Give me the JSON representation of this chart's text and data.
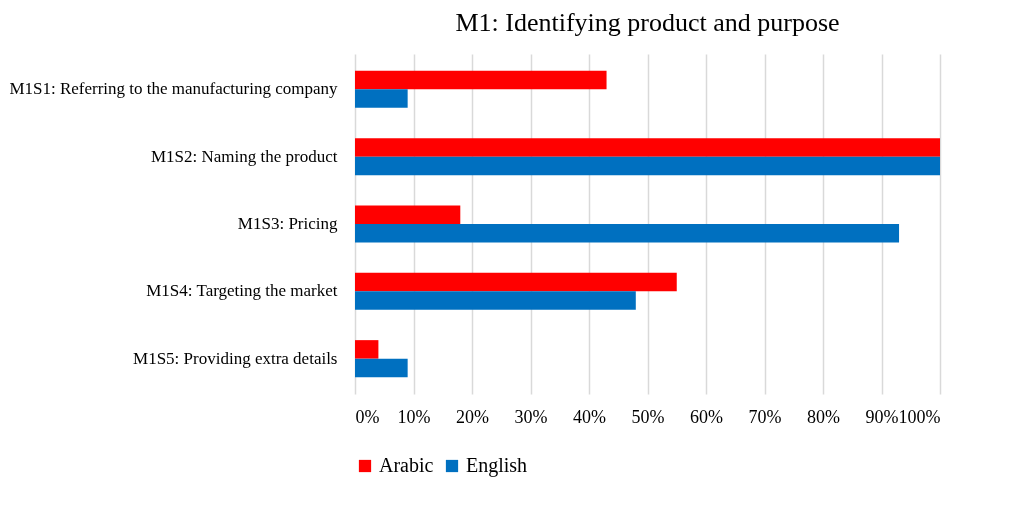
{
  "chart_data": {
    "type": "bar",
    "orientation": "horizontal",
    "title": "M1: Identifying product and purpose",
    "categories": [
      "M1S1: Referring to the manufacturing company",
      "M1S2: Naming the product",
      "M1S3: Pricing",
      "M1S4: Targeting the market",
      "M1S5: Providing extra details"
    ],
    "series": [
      {
        "name": "Arabic",
        "color": "#ff0000",
        "values": [
          43,
          100,
          18,
          55,
          4
        ]
      },
      {
        "name": "English",
        "color": "#0070c0",
        "values": [
          9,
          100,
          93,
          48,
          9
        ]
      }
    ],
    "xlim": [
      0,
      100
    ],
    "xticks": [
      {
        "value": 0,
        "label": "0%"
      },
      {
        "value": 10,
        "label": "10%"
      },
      {
        "value": 20,
        "label": "20%"
      },
      {
        "value": 30,
        "label": "30%"
      },
      {
        "value": 40,
        "label": "40%"
      },
      {
        "value": 50,
        "label": "50%"
      },
      {
        "value": 60,
        "label": "60%"
      },
      {
        "value": 70,
        "label": "70%"
      },
      {
        "value": 80,
        "label": "80%"
      },
      {
        "value": 90,
        "label": "90%"
      },
      {
        "value": 100,
        "label": "100%"
      }
    ],
    "grid": "x",
    "legend": "bottom"
  }
}
